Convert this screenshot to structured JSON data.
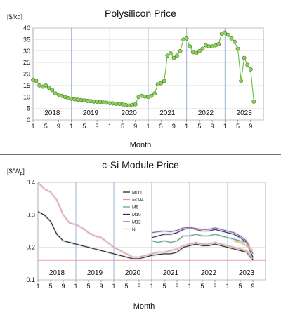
{
  "chart_data": [
    {
      "type": "line",
      "title": "Polysilicon Price",
      "ylabel": "[$/kg]",
      "xlabel": "Month",
      "ylim": [
        0,
        40
      ],
      "y_ticks": [
        "0",
        "5",
        "10",
        "15",
        "20",
        "25",
        "30",
        "35",
        "40"
      ],
      "x_ticks": [
        "1",
        "5",
        "9",
        "1",
        "5",
        "9",
        "1",
        "5",
        "9",
        "1",
        "5",
        "9",
        "1",
        "5",
        "9",
        "1",
        "5",
        "9"
      ],
      "year_labels": [
        "2018",
        "2019",
        "2020",
        "2021",
        "2022",
        "2023"
      ],
      "grid": true,
      "series": [
        {
          "color": "#6cbf3f",
          "x": [
            1,
            2,
            3,
            4,
            5,
            6,
            7,
            8,
            9,
            10,
            11,
            12,
            13,
            14,
            15,
            16,
            17,
            18,
            19,
            20,
            21,
            22,
            23,
            24,
            25,
            26,
            27,
            28,
            29,
            30,
            31,
            32,
            33,
            34,
            35,
            36,
            37,
            38,
            39,
            40,
            41,
            42,
            43,
            44,
            45,
            46,
            47,
            48,
            49,
            50,
            51,
            52,
            53,
            54,
            55,
            56,
            57,
            58,
            59,
            60,
            61,
            62,
            63,
            64,
            65,
            66,
            67,
            68,
            69,
            70
          ],
          "y": [
            17.5,
            17,
            15,
            14.5,
            15,
            14,
            13,
            11.5,
            11,
            10.5,
            10,
            9.5,
            9.2,
            9,
            8.8,
            8.7,
            8.5,
            8.3,
            8.2,
            8,
            7.9,
            7.8,
            7.6,
            7.5,
            7.3,
            7.2,
            7,
            7,
            6.8,
            6.5,
            6.3,
            6.5,
            6.8,
            10,
            10.5,
            10.2,
            10,
            10.5,
            11.5,
            15.5,
            16,
            17,
            28,
            29,
            27,
            28,
            30,
            35,
            35.5,
            32,
            29.5,
            29,
            30,
            31,
            32.5,
            32,
            32,
            32.5,
            33,
            37.5,
            38,
            37,
            35.5,
            34,
            31,
            17,
            27,
            24,
            22,
            8
          ]
        }
      ]
    },
    {
      "type": "line",
      "title": "c-Si Module Price",
      "ylabel_main": "[$/W",
      "ylabel_sub": "p",
      "ylabel_close": "]",
      "xlabel": "Month",
      "ylim": [
        0.1,
        0.4
      ],
      "y_ticks": [
        "0.1",
        "0.2",
        "0.3",
        "0.4"
      ],
      "x_ticks": [
        "1",
        "5",
        "9",
        "1",
        "5",
        "9",
        "1",
        "5",
        "9",
        "1",
        "5",
        "9",
        "1",
        "5",
        "9",
        "1",
        "5",
        "9"
      ],
      "year_labels": [
        "2018",
        "2019",
        "2020",
        "2021",
        "2022",
        "2023"
      ],
      "grid": true,
      "legend": "top-center",
      "series": [
        {
          "name": "Multi",
          "color": "#2a2a2a",
          "x": [
            1,
            3,
            5,
            7,
            9,
            11,
            13,
            15,
            17,
            19,
            21,
            23,
            25,
            27,
            29,
            31,
            33,
            35,
            37,
            39,
            41,
            43,
            45,
            47,
            49,
            51,
            53,
            55,
            57,
            59,
            61,
            63,
            65,
            67,
            69
          ],
          "y": [
            0.31,
            0.3,
            0.28,
            0.24,
            0.22,
            0.215,
            0.21,
            0.205,
            0.2,
            0.195,
            0.19,
            0.185,
            0.18,
            0.175,
            0.17,
            0.165,
            0.165,
            0.17,
            0.175,
            0.178,
            0.18,
            0.18,
            0.185,
            0.2,
            0.205,
            0.21,
            0.205,
            0.205,
            0.21,
            0.205,
            0.2,
            0.195,
            0.19,
            0.185,
            0.16
          ]
        },
        {
          "name": "=<M4",
          "color": "#e89aa6",
          "x": [
            1,
            3,
            5,
            7,
            9,
            11,
            13,
            15,
            17,
            19,
            21,
            23,
            25,
            27,
            29,
            31,
            33,
            35,
            37,
            39,
            41,
            43,
            45,
            47,
            49,
            51,
            53,
            55,
            57,
            59,
            61,
            63,
            65,
            67,
            69
          ],
          "y": [
            0.4,
            0.38,
            0.37,
            0.345,
            0.3,
            0.275,
            0.27,
            0.26,
            0.245,
            0.235,
            0.23,
            0.215,
            0.2,
            0.19,
            0.18,
            0.17,
            0.17,
            0.175,
            0.18,
            0.185,
            0.185,
            0.19,
            0.195,
            0.205,
            0.21,
            0.215,
            0.21,
            0.21,
            0.215,
            0.21,
            0.205,
            0.2,
            0.195,
            0.19,
            0.165
          ]
        },
        {
          "name": "M6",
          "color": "#5aa88a",
          "x": [
            37,
            39,
            41,
            43,
            45,
            47,
            49,
            51,
            53,
            55,
            57,
            59,
            61,
            63,
            65,
            67,
            69
          ],
          "y": [
            0.22,
            0.215,
            0.22,
            0.215,
            0.22,
            0.235,
            0.235,
            0.24,
            0.235,
            0.235,
            0.24,
            0.235,
            0.23,
            0.225,
            0.22,
            0.215,
            0.165
          ]
        },
        {
          "name": "M10",
          "color": "#2d2d70",
          "x": [
            37,
            39,
            41,
            43,
            45,
            47,
            49,
            51,
            53,
            55,
            57,
            59,
            61,
            63,
            65,
            67,
            69
          ],
          "y": [
            0.23,
            0.235,
            0.24,
            0.24,
            0.245,
            0.255,
            0.26,
            0.255,
            0.25,
            0.25,
            0.255,
            0.25,
            0.245,
            0.24,
            0.23,
            0.215,
            0.17
          ]
        },
        {
          "name": "M12",
          "color": "#9a62a8",
          "x": [
            37,
            39,
            41,
            43,
            45,
            47,
            49,
            51,
            53,
            55,
            57,
            59,
            61,
            63,
            65,
            67,
            69
          ],
          "y": [
            0.245,
            0.248,
            0.25,
            0.248,
            0.252,
            0.26,
            0.262,
            0.258,
            0.255,
            0.255,
            0.26,
            0.255,
            0.25,
            0.245,
            0.235,
            0.22,
            0.18
          ]
        },
        {
          "name": "N",
          "color": "#f0b830",
          "x": [
            63,
            65,
            67,
            69
          ],
          "y": [
            0.22,
            0.215,
            0.205,
            0.19
          ]
        }
      ]
    }
  ]
}
